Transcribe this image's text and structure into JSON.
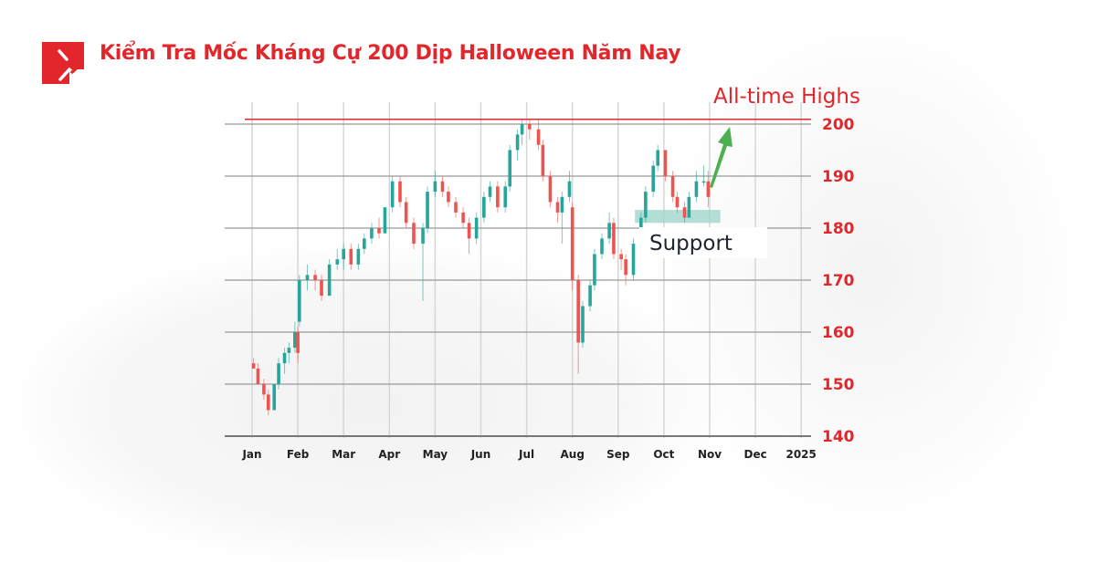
{
  "header": {
    "title": "Kiểm Tra Mốc Kháng Cự 200 Dịp Halloween Năm Nay",
    "logo_icon": "red-square-arrow-logo"
  },
  "colors": {
    "brand": "#e3262b",
    "up": "#26a69a",
    "down": "#ef5350",
    "support": "#9fd6cc",
    "arrow": "#4caf50"
  },
  "chart_data": {
    "type": "candlestick",
    "title": "",
    "xlabel": "",
    "ylabel": "",
    "ylim": [
      140,
      200
    ],
    "yticks": [
      200,
      190,
      180,
      170,
      160,
      150,
      140
    ],
    "xtick_labels": [
      "Jan",
      "Feb",
      "Mar",
      "Apr",
      "May",
      "Jun",
      "Jul",
      "Aug",
      "Sep",
      "Oct",
      "Nov",
      "Dec",
      "2025"
    ],
    "grid": true,
    "y_axis_position": "right",
    "candles": [
      [
        "2024-01-02",
        154,
        155,
        153,
        153
      ],
      [
        "2024-01-05",
        153,
        154,
        150,
        150
      ],
      [
        "2024-01-09",
        150,
        151,
        147,
        148
      ],
      [
        "2024-01-12",
        148,
        149,
        144,
        145
      ],
      [
        "2024-01-16",
        145,
        150,
        145,
        150
      ],
      [
        "2024-01-19",
        150,
        155,
        149,
        154
      ],
      [
        "2024-01-23",
        154,
        157,
        152,
        156
      ],
      [
        "2024-01-26",
        156,
        158,
        154,
        157
      ],
      [
        "2024-01-30",
        157,
        162,
        156,
        160
      ],
      [
        "2024-02-01",
        160,
        161,
        154,
        156
      ],
      [
        "2024-02-02",
        162,
        171,
        161,
        170
      ],
      [
        "2024-02-07",
        170,
        173,
        168,
        171
      ],
      [
        "2024-02-12",
        171,
        172,
        168,
        170
      ],
      [
        "2024-02-16",
        170,
        171,
        166,
        167
      ],
      [
        "2024-02-21",
        167,
        174,
        167,
        173
      ],
      [
        "2024-02-26",
        173,
        176,
        172,
        174
      ],
      [
        "2024-03-01",
        174,
        177,
        172,
        176
      ],
      [
        "2024-03-06",
        176,
        177,
        172,
        173
      ],
      [
        "2024-03-11",
        173,
        177,
        172,
        176
      ],
      [
        "2024-03-15",
        176,
        179,
        175,
        178
      ],
      [
        "2024-03-20",
        178,
        181,
        177,
        180
      ],
      [
        "2024-03-25",
        180,
        182,
        178,
        179
      ],
      [
        "2024-03-29",
        179,
        184,
        179,
        184
      ],
      [
        "2024-04-03",
        184,
        190,
        183,
        189
      ],
      [
        "2024-04-08",
        189,
        190,
        184,
        185
      ],
      [
        "2024-04-12",
        185,
        186,
        180,
        181
      ],
      [
        "2024-04-17",
        181,
        182,
        176,
        177
      ],
      [
        "2024-04-23",
        177,
        181,
        166,
        180
      ],
      [
        "2024-04-26",
        180,
        188,
        179,
        187
      ],
      [
        "2024-05-01",
        187,
        191,
        186,
        189
      ],
      [
        "2024-05-06",
        189,
        190,
        186,
        187
      ],
      [
        "2024-05-10",
        187,
        188,
        184,
        185
      ],
      [
        "2024-05-15",
        185,
        186,
        182,
        183
      ],
      [
        "2024-05-20",
        183,
        184,
        180,
        181
      ],
      [
        "2024-05-24",
        181,
        182,
        175,
        178
      ],
      [
        "2024-05-29",
        178,
        183,
        177,
        182
      ],
      [
        "2024-06-03",
        182,
        187,
        181,
        186
      ],
      [
        "2024-06-07",
        186,
        189,
        185,
        188
      ],
      [
        "2024-06-12",
        188,
        189,
        183,
        184
      ],
      [
        "2024-06-17",
        184,
        189,
        183,
        188
      ],
      [
        "2024-06-20",
        188,
        196,
        187,
        195
      ],
      [
        "2024-06-25",
        195,
        199,
        193,
        198
      ],
      [
        "2024-06-28",
        198,
        201,
        196,
        200
      ],
      [
        "2024-07-03",
        200,
        201,
        197,
        199
      ],
      [
        "2024-07-09",
        199,
        201,
        195,
        196
      ],
      [
        "2024-07-12",
        196,
        197,
        189,
        190
      ],
      [
        "2024-07-17",
        190,
        191,
        184,
        185
      ],
      [
        "2024-07-22",
        185,
        186,
        181,
        183
      ],
      [
        "2024-07-25",
        183,
        187,
        177,
        186
      ],
      [
        "2024-07-30",
        186,
        191,
        185,
        189
      ],
      [
        "2024-08-01",
        184,
        185,
        168,
        170
      ],
      [
        "2024-08-05",
        170,
        171,
        152,
        158
      ],
      [
        "2024-08-08",
        158,
        166,
        157,
        165
      ],
      [
        "2024-08-13",
        165,
        170,
        164,
        169
      ],
      [
        "2024-08-16",
        169,
        176,
        168,
        175
      ],
      [
        "2024-08-21",
        175,
        179,
        174,
        178
      ],
      [
        "2024-08-26",
        178,
        183,
        177,
        181
      ],
      [
        "2024-08-29",
        181,
        182,
        174,
        175
      ],
      [
        "2024-09-03",
        175,
        176,
        172,
        174
      ],
      [
        "2024-09-06",
        174,
        175,
        169,
        171
      ],
      [
        "2024-09-11",
        171,
        178,
        170,
        177
      ],
      [
        "2024-09-16",
        177,
        183,
        176,
        182
      ],
      [
        "2024-09-19",
        182,
        188,
        181,
        187
      ],
      [
        "2024-09-24",
        187,
        193,
        186,
        192
      ],
      [
        "2024-09-27",
        192,
        196,
        191,
        195
      ],
      [
        "2024-10-02",
        195,
        195,
        189,
        190
      ],
      [
        "2024-10-07",
        190,
        191,
        185,
        186
      ],
      [
        "2024-10-10",
        186,
        187,
        183,
        184
      ],
      [
        "2024-10-15",
        184,
        185,
        181,
        182
      ],
      [
        "2024-10-18",
        182,
        187,
        182,
        186
      ],
      [
        "2024-10-23",
        186,
        191,
        185,
        189
      ],
      [
        "2024-10-28",
        189,
        192,
        188,
        189
      ],
      [
        "2024-10-31",
        189,
        191,
        184,
        186
      ]
    ],
    "annotations": {
      "resistance_label": "All-time Highs",
      "resistance_level": 201,
      "support_label": "Support",
      "support_zone": [
        181,
        183.5
      ],
      "support_zone_dates": [
        "2024-09-12",
        "2024-11-08"
      ],
      "arrow": "green up arrow toward all-time highs"
    }
  }
}
